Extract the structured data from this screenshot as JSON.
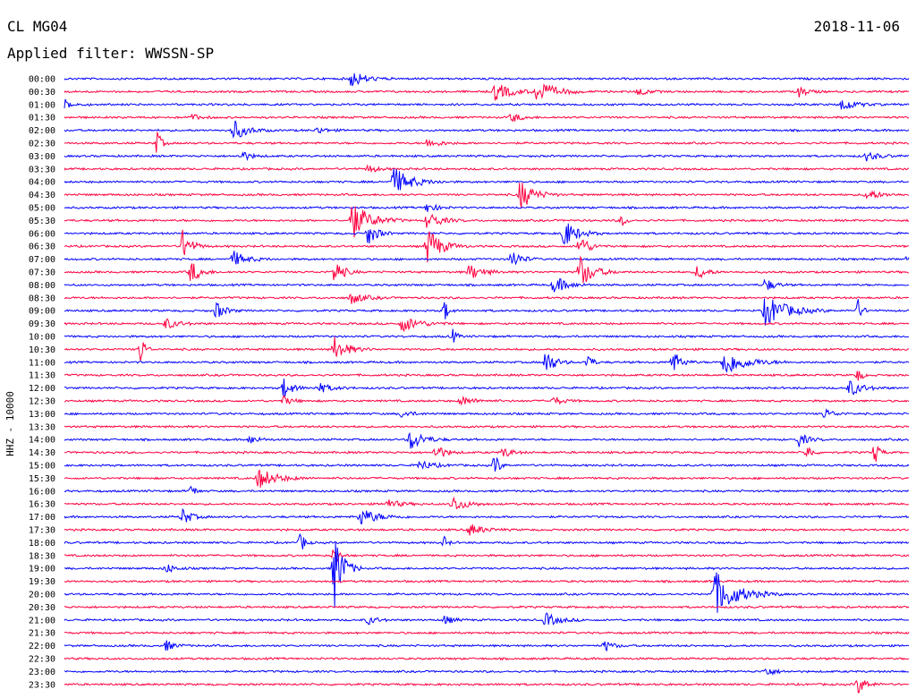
{
  "header": {
    "station": "CL MG04",
    "date": "2018-11-06",
    "filter_label": "Applied filter: WWSSN-SP"
  },
  "chart_data": {
    "type": "helicorder",
    "ylabel": "HHZ - 10000",
    "row_labels": [
      "00:00",
      "00:30",
      "01:00",
      "01:30",
      "02:00",
      "02:30",
      "03:00",
      "03:30",
      "04:00",
      "04:30",
      "05:00",
      "05:30",
      "06:00",
      "06:30",
      "07:00",
      "07:30",
      "08:00",
      "08:30",
      "09:00",
      "09:30",
      "10:00",
      "10:30",
      "11:00",
      "11:30",
      "12:00",
      "12:30",
      "13:00",
      "13:30",
      "14:00",
      "14:30",
      "15:00",
      "15:30",
      "16:00",
      "16:30",
      "17:00",
      "17:30",
      "18:00",
      "18:30",
      "19:00",
      "19:30",
      "20:00",
      "20:30",
      "21:00",
      "21:30",
      "22:00",
      "22:30",
      "23:00",
      "23:30"
    ],
    "colors": [
      "#0000ff",
      "#ff0040"
    ],
    "grid": false,
    "events": [
      {
        "row": 0,
        "x": 0.34,
        "amp": 10,
        "dur": 0.03
      },
      {
        "row": 1,
        "x": 0.51,
        "amp": 10,
        "dur": 0.04
      },
      {
        "row": 1,
        "x": 0.56,
        "amp": 13,
        "dur": 0.04
      },
      {
        "row": 1,
        "x": 0.87,
        "amp": 6,
        "dur": 0.02
      },
      {
        "row": 1,
        "x": 0.68,
        "amp": 5,
        "dur": 0.02
      },
      {
        "row": 2,
        "x": 0.0,
        "amp": 6,
        "dur": 0.02
      },
      {
        "row": 2,
        "x": 0.92,
        "amp": 8,
        "dur": 0.03
      },
      {
        "row": 3,
        "x": 0.53,
        "amp": 6,
        "dur": 0.02
      },
      {
        "row": 3,
        "x": 0.15,
        "amp": 4,
        "dur": 0.02
      },
      {
        "row": 4,
        "x": 0.2,
        "amp": 12,
        "dur": 0.03
      },
      {
        "row": 4,
        "x": 0.3,
        "amp": 4,
        "dur": 0.02
      },
      {
        "row": 5,
        "x": 0.11,
        "amp": 14,
        "dur": 0.01
      },
      {
        "row": 5,
        "x": 0.43,
        "amp": 5,
        "dur": 0.03
      },
      {
        "row": 6,
        "x": 0.21,
        "amp": 6,
        "dur": 0.02
      },
      {
        "row": 6,
        "x": 0.95,
        "amp": 5,
        "dur": 0.03
      },
      {
        "row": 7,
        "x": 0.36,
        "amp": 5,
        "dur": 0.02
      },
      {
        "row": 8,
        "x": 0.39,
        "amp": 16,
        "dur": 0.04
      },
      {
        "row": 9,
        "x": 0.54,
        "amp": 18,
        "dur": 0.03
      },
      {
        "row": 9,
        "x": 0.95,
        "amp": 6,
        "dur": 0.03
      },
      {
        "row": 10,
        "x": 0.43,
        "amp": 6,
        "dur": 0.02
      },
      {
        "row": 11,
        "x": 0.34,
        "amp": 22,
        "dur": 0.04
      },
      {
        "row": 11,
        "x": 0.43,
        "amp": 10,
        "dur": 0.03
      },
      {
        "row": 11,
        "x": 0.66,
        "amp": 7,
        "dur": 0.01
      },
      {
        "row": 12,
        "x": 0.36,
        "amp": 14,
        "dur": 0.02
      },
      {
        "row": 12,
        "x": 0.59,
        "amp": 18,
        "dur": 0.03
      },
      {
        "row": 13,
        "x": 0.14,
        "amp": 18,
        "dur": 0.02
      },
      {
        "row": 13,
        "x": 0.43,
        "amp": 22,
        "dur": 0.03
      },
      {
        "row": 13,
        "x": 0.61,
        "amp": 15,
        "dur": 0.02
      },
      {
        "row": 14,
        "x": 0.2,
        "amp": 9,
        "dur": 0.03
      },
      {
        "row": 14,
        "x": 0.53,
        "amp": 12,
        "dur": 0.02
      },
      {
        "row": 14,
        "x": 1.0,
        "amp": 8,
        "dur": 0.01
      },
      {
        "row": 15,
        "x": 0.15,
        "amp": 14,
        "dur": 0.02
      },
      {
        "row": 15,
        "x": 0.32,
        "amp": 15,
        "dur": 0.02
      },
      {
        "row": 15,
        "x": 0.48,
        "amp": 9,
        "dur": 0.03
      },
      {
        "row": 15,
        "x": 0.61,
        "amp": 20,
        "dur": 0.03
      },
      {
        "row": 15,
        "x": 0.75,
        "amp": 9,
        "dur": 0.02
      },
      {
        "row": 16,
        "x": 0.58,
        "amp": 10,
        "dur": 0.03
      },
      {
        "row": 16,
        "x": 0.83,
        "amp": 8,
        "dur": 0.02
      },
      {
        "row": 17,
        "x": 0.34,
        "amp": 7,
        "dur": 0.03
      },
      {
        "row": 18,
        "x": 0.18,
        "amp": 10,
        "dur": 0.02
      },
      {
        "row": 18,
        "x": 0.45,
        "amp": 12,
        "dur": 0.01
      },
      {
        "row": 18,
        "x": 0.83,
        "amp": 18,
        "dur": 0.05
      },
      {
        "row": 18,
        "x": 0.94,
        "amp": 12,
        "dur": 0.01
      },
      {
        "row": 19,
        "x": 0.12,
        "amp": 6,
        "dur": 0.03
      },
      {
        "row": 19,
        "x": 0.4,
        "amp": 9,
        "dur": 0.04
      },
      {
        "row": 20,
        "x": 0.46,
        "amp": 8,
        "dur": 0.01
      },
      {
        "row": 21,
        "x": 0.09,
        "amp": 18,
        "dur": 0.01
      },
      {
        "row": 21,
        "x": 0.32,
        "amp": 14,
        "dur": 0.03
      },
      {
        "row": 22,
        "x": 0.57,
        "amp": 16,
        "dur": 0.02
      },
      {
        "row": 22,
        "x": 0.62,
        "amp": 12,
        "dur": 0.01
      },
      {
        "row": 22,
        "x": 0.72,
        "amp": 14,
        "dur": 0.02
      },
      {
        "row": 22,
        "x": 0.78,
        "amp": 16,
        "dur": 0.05
      },
      {
        "row": 23,
        "x": 0.94,
        "amp": 8,
        "dur": 0.01
      },
      {
        "row": 24,
        "x": 0.26,
        "amp": 11,
        "dur": 0.02
      },
      {
        "row": 24,
        "x": 0.3,
        "amp": 6,
        "dur": 0.03
      },
      {
        "row": 24,
        "x": 0.93,
        "amp": 9,
        "dur": 0.03
      },
      {
        "row": 25,
        "x": 0.26,
        "amp": 5,
        "dur": 0.02
      },
      {
        "row": 25,
        "x": 0.47,
        "amp": 5,
        "dur": 0.03
      },
      {
        "row": 25,
        "x": 0.58,
        "amp": 5,
        "dur": 0.02
      },
      {
        "row": 26,
        "x": 0.4,
        "amp": 5,
        "dur": 0.02
      },
      {
        "row": 26,
        "x": 0.9,
        "amp": 6,
        "dur": 0.02
      },
      {
        "row": 28,
        "x": 0.41,
        "amp": 12,
        "dur": 0.03
      },
      {
        "row": 28,
        "x": 0.22,
        "amp": 5,
        "dur": 0.02
      },
      {
        "row": 28,
        "x": 0.87,
        "amp": 8,
        "dur": 0.02
      },
      {
        "row": 29,
        "x": 0.44,
        "amp": 10,
        "dur": 0.02
      },
      {
        "row": 29,
        "x": 0.52,
        "amp": 6,
        "dur": 0.02
      },
      {
        "row": 29,
        "x": 0.88,
        "amp": 10,
        "dur": 0.01
      },
      {
        "row": 29,
        "x": 0.96,
        "amp": 14,
        "dur": 0.01
      },
      {
        "row": 30,
        "x": 0.42,
        "amp": 6,
        "dur": 0.03
      },
      {
        "row": 30,
        "x": 0.51,
        "amp": 14,
        "dur": 0.01
      },
      {
        "row": 31,
        "x": 0.23,
        "amp": 12,
        "dur": 0.04
      },
      {
        "row": 32,
        "x": 0.15,
        "amp": 8,
        "dur": 0.01
      },
      {
        "row": 33,
        "x": 0.38,
        "amp": 6,
        "dur": 0.03
      },
      {
        "row": 33,
        "x": 0.46,
        "amp": 9,
        "dur": 0.03
      },
      {
        "row": 34,
        "x": 0.14,
        "amp": 10,
        "dur": 0.02
      },
      {
        "row": 34,
        "x": 0.35,
        "amp": 10,
        "dur": 0.04
      },
      {
        "row": 35,
        "x": 0.48,
        "amp": 7,
        "dur": 0.03
      },
      {
        "row": 36,
        "x": 0.28,
        "amp": 12,
        "dur": 0.01
      },
      {
        "row": 36,
        "x": 0.45,
        "amp": 6,
        "dur": 0.01
      },
      {
        "row": 37,
        "x": 0.32,
        "amp": 14,
        "dur": 0.01
      },
      {
        "row": 38,
        "x": 0.32,
        "amp": 45,
        "dur": 0.02
      },
      {
        "row": 38,
        "x": 0.12,
        "amp": 6,
        "dur": 0.02
      },
      {
        "row": 40,
        "x": 0.77,
        "amp": 26,
        "dur": 0.05
      },
      {
        "row": 42,
        "x": 0.36,
        "amp": 5,
        "dur": 0.02
      },
      {
        "row": 42,
        "x": 0.57,
        "amp": 8,
        "dur": 0.03
      },
      {
        "row": 42,
        "x": 0.45,
        "amp": 5,
        "dur": 0.02
      },
      {
        "row": 44,
        "x": 0.12,
        "amp": 6,
        "dur": 0.02
      },
      {
        "row": 44,
        "x": 0.64,
        "amp": 6,
        "dur": 0.02
      },
      {
        "row": 46,
        "x": 0.83,
        "amp": 6,
        "dur": 0.02
      },
      {
        "row": 47,
        "x": 0.94,
        "amp": 10,
        "dur": 0.02
      }
    ]
  }
}
